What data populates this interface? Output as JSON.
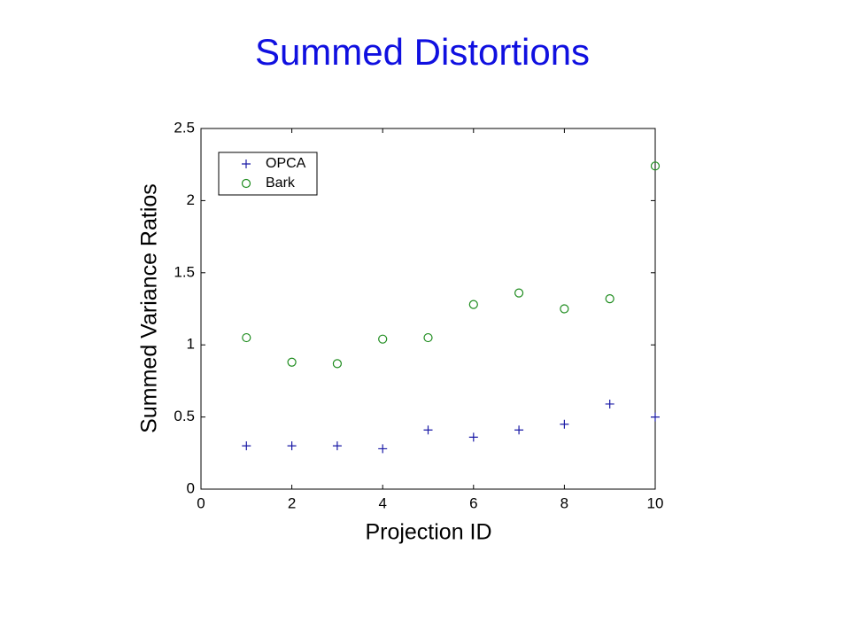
{
  "chart_data": {
    "type": "scatter",
    "title": "Summed Distortions",
    "x_label": "Projection ID",
    "y_label": "Summed Variance Ratios",
    "x": [
      1,
      2,
      3,
      4,
      5,
      6,
      7,
      8,
      9,
      10
    ],
    "series": [
      {
        "name": "OPCA",
        "color": "#1a1aa6",
        "marker": "+",
        "values": [
          0.3,
          0.3,
          0.3,
          0.28,
          0.41,
          0.36,
          0.41,
          0.45,
          0.59,
          0.5
        ]
      },
      {
        "name": "Bark",
        "color": "#1e8c1e",
        "marker": "o",
        "values": [
          1.05,
          0.88,
          0.87,
          1.04,
          1.05,
          1.28,
          1.36,
          1.25,
          1.32,
          2.24
        ]
      }
    ],
    "xlim": [
      0,
      10
    ],
    "xticks": [
      0,
      2,
      4,
      6,
      8,
      10
    ],
    "ylim": [
      0,
      2.5
    ],
    "yticks": [
      0,
      0.5,
      1,
      1.5,
      2,
      2.5
    ],
    "grid": false,
    "legend": "upper left"
  }
}
